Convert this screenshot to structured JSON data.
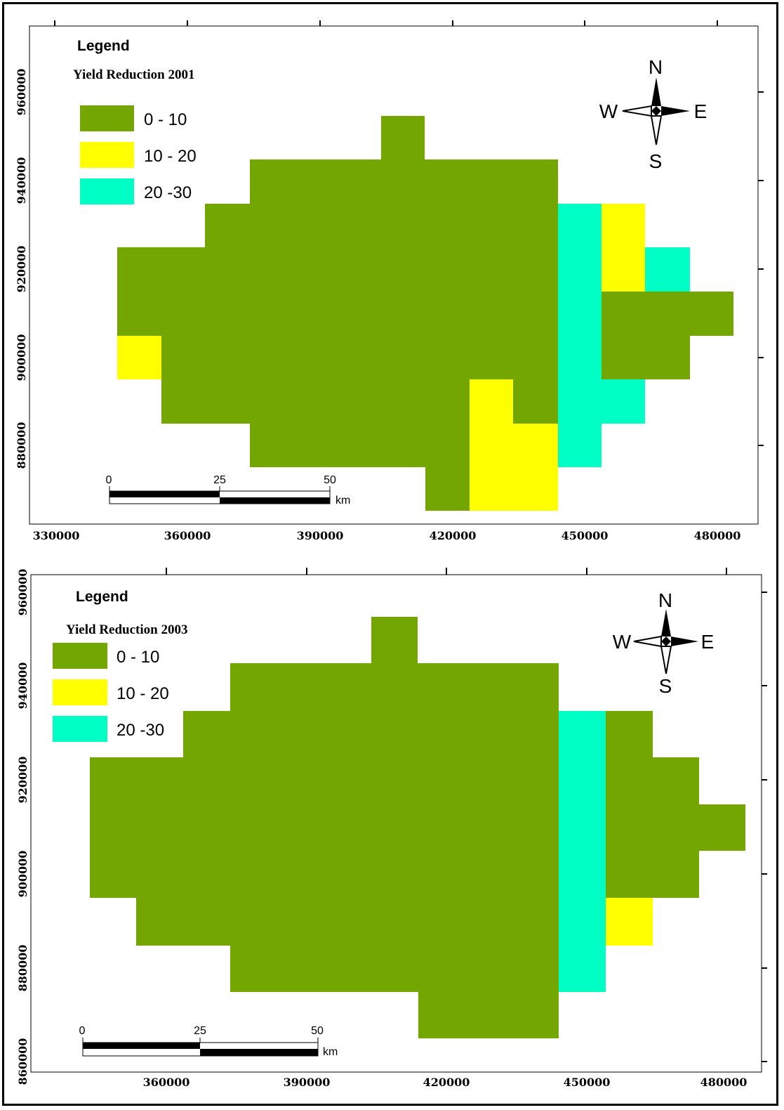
{
  "colors": {
    "c0_10": "#74a600",
    "c10_20": "#ffff00",
    "c20_30": "#00ffc5"
  },
  "maps": [
    {
      "legend_title": "Legend",
      "subtitle": "Yield Reduction 2001",
      "legend_items": [
        "0 - 10",
        "10 - 20",
        "20 -30"
      ],
      "x_ticks": [
        "330000",
        "360000",
        "390000",
        "420000",
        "450000",
        "480000"
      ],
      "y_ticks": [
        "960000",
        "940000",
        "920000",
        "900000",
        "880000"
      ],
      "compass": {
        "n": "N",
        "s": "S",
        "e": "E",
        "w": "W"
      },
      "scale": {
        "labels": [
          "0",
          "25",
          "50"
        ],
        "unit": "km"
      }
    },
    {
      "legend_title": "Legend",
      "subtitle": "Yield Reduction 2003",
      "legend_items": [
        "0 - 10",
        "10 - 20",
        "20 -30"
      ],
      "x_ticks": [
        "360000",
        "390000",
        "420000",
        "450000",
        "480000"
      ],
      "y_ticks": [
        "960000",
        "940000",
        "920000",
        "900000",
        "880000",
        "860000"
      ],
      "compass": {
        "n": "N",
        "s": "S",
        "e": "E",
        "w": "W"
      },
      "scale": {
        "labels": [
          "0",
          "25",
          "50"
        ],
        "unit": "km"
      }
    }
  ]
}
